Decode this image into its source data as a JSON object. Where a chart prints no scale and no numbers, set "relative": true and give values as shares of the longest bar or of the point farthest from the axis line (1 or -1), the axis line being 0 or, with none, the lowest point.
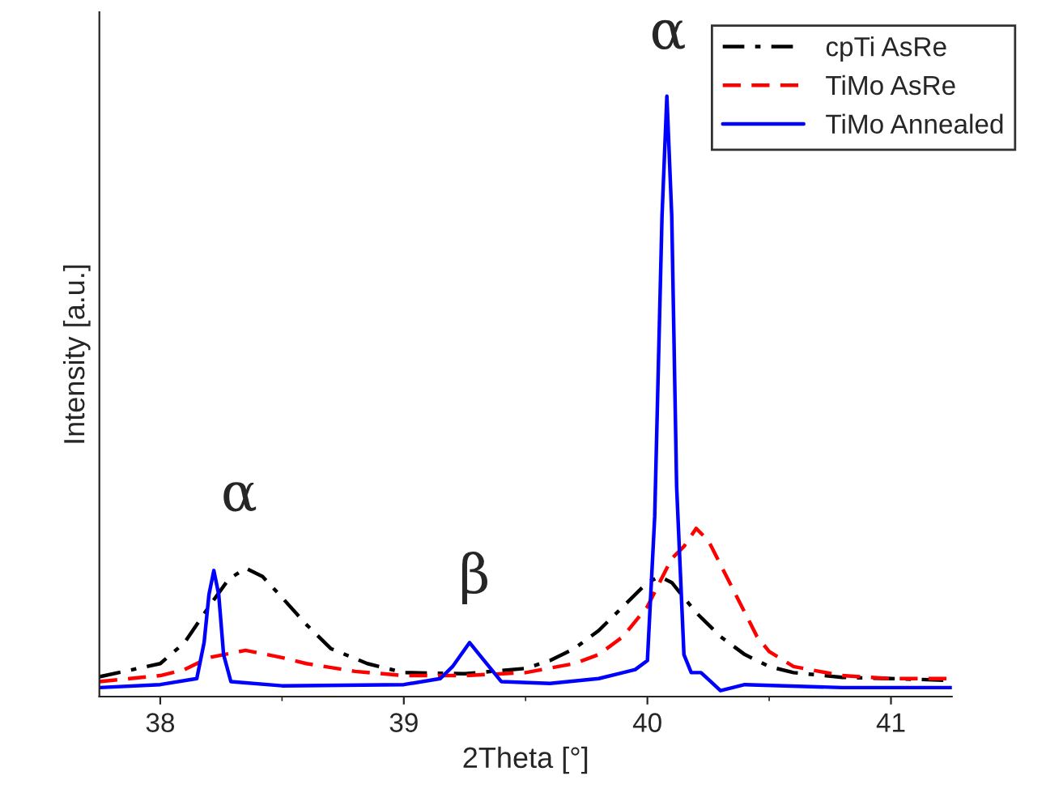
{
  "chart_data": {
    "type": "line",
    "relative": true,
    "xlabel": "2Theta [°]",
    "ylabel": "Intensity [a.u.]",
    "xlim": [
      37.75,
      41.25
    ],
    "xticks": [
      38,
      39,
      40,
      41
    ],
    "legend": "top right",
    "grid": false,
    "series": [
      {
        "name": "cpTi AsRe",
        "color": "#000000",
        "line_style": "dashdot",
        "x": [
          37.75,
          38.0,
          38.1,
          38.2,
          38.28,
          38.35,
          38.42,
          38.5,
          38.6,
          38.7,
          38.85,
          39.0,
          39.25,
          39.5,
          39.6,
          39.7,
          39.8,
          39.9,
          40.0,
          40.05,
          40.1,
          40.2,
          40.3,
          40.4,
          40.5,
          40.6,
          40.8,
          41.0,
          41.25
        ],
        "values": [
          0.033,
          0.055,
          0.09,
          0.15,
          0.195,
          0.214,
          0.2,
          0.165,
          0.12,
          0.08,
          0.055,
          0.04,
          0.038,
          0.047,
          0.06,
          0.08,
          0.11,
          0.15,
          0.19,
          0.2,
          0.19,
          0.14,
          0.1,
          0.07,
          0.05,
          0.04,
          0.032,
          0.03,
          0.027
        ]
      },
      {
        "name": "TiMo AsRe",
        "color": "#ff0000",
        "line_style": "dashed",
        "x": [
          37.75,
          38.0,
          38.1,
          38.2,
          38.35,
          38.5,
          38.6,
          38.8,
          39.0,
          39.25,
          39.5,
          39.7,
          39.8,
          39.9,
          40.0,
          40.05,
          40.1,
          40.15,
          40.2,
          40.25,
          40.3,
          40.4,
          40.45,
          40.5,
          40.6,
          40.8,
          41.0,
          41.25
        ],
        "values": [
          0.025,
          0.035,
          0.045,
          0.065,
          0.077,
          0.065,
          0.055,
          0.042,
          0.035,
          0.035,
          0.04,
          0.055,
          0.07,
          0.1,
          0.15,
          0.19,
          0.23,
          0.25,
          0.28,
          0.26,
          0.22,
          0.14,
          0.1,
          0.075,
          0.05,
          0.035,
          0.03,
          0.03
        ]
      },
      {
        "name": "TiMo Annealed",
        "color": "#0000ff",
        "line_style": "solid",
        "x": [
          37.75,
          38.0,
          38.15,
          38.18,
          38.2,
          38.22,
          38.24,
          38.26,
          38.29,
          38.5,
          39.0,
          39.15,
          39.2,
          39.27,
          39.33,
          39.4,
          39.6,
          39.8,
          39.95,
          40.0,
          40.03,
          40.06,
          40.08,
          40.1,
          40.12,
          40.15,
          40.18,
          40.22,
          40.26,
          40.3,
          40.4,
          40.8,
          41.25
        ],
        "values": [
          0.015,
          0.02,
          0.03,
          0.09,
          0.17,
          0.21,
          0.17,
          0.07,
          0.025,
          0.018,
          0.02,
          0.03,
          0.05,
          0.09,
          0.06,
          0.025,
          0.022,
          0.03,
          0.045,
          0.06,
          0.3,
          0.8,
          1.0,
          0.8,
          0.35,
          0.07,
          0.04,
          0.04,
          0.025,
          0.01,
          0.02,
          0.015,
          0.015
        ]
      }
    ],
    "annotations": [
      "α",
      "β",
      "α"
    ]
  }
}
